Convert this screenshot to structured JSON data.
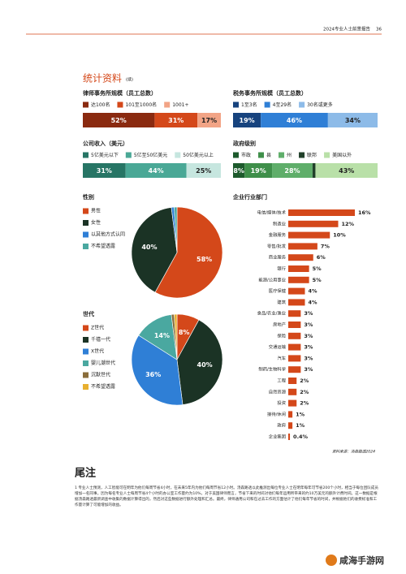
{
  "header": {
    "text": "2024专业人士前景报告",
    "page": "36"
  },
  "section": {
    "title": "统计资料",
    "note": "(续)"
  },
  "chart_data": [
    {
      "type": "stacked",
      "title": "律师事务所规模（员工总数）",
      "categories": [
        "达100名",
        "101至1000名",
        "1001+"
      ],
      "values": [
        52,
        31,
        17
      ],
      "value_labels": [
        "52%",
        "31%",
        "17%"
      ],
      "colors": [
        "#8a2a10",
        "#d4481a",
        "#f2a486"
      ]
    },
    {
      "type": "stacked",
      "title": "税务事务所规模（员工总数）",
      "categories": [
        "1至3名",
        "4至29名",
        "30名或更多"
      ],
      "values": [
        19,
        46,
        34
      ],
      "value_labels": [
        "19%",
        "46%",
        "34%"
      ],
      "colors": [
        "#17437e",
        "#2f7fd6",
        "#8dbbe8"
      ]
    },
    {
      "type": "stacked",
      "title": "公司收入（美元）",
      "categories": [
        "5亿美元以下",
        "5亿至50亿美元",
        "50亿美元以上"
      ],
      "values": [
        31,
        44,
        25
      ],
      "value_labels": [
        "31%",
        "44%",
        "25%"
      ],
      "colors": [
        "#277565",
        "#4aa896",
        "#c6e6df"
      ]
    },
    {
      "type": "stacked",
      "title": "政府级别",
      "categories": [
        "市政",
        "县",
        "州",
        "联邦",
        "美国以外"
      ],
      "values": [
        8,
        19,
        28,
        2,
        43
      ],
      "value_labels": [
        "8%",
        "19%",
        "28%",
        null,
        "43%"
      ],
      "colors": [
        "#1d5a2c",
        "#3f8f4a",
        "#5fae6a",
        "#21402a",
        "#b9e0a8"
      ]
    },
    {
      "type": "pie",
      "title": "性别",
      "categories": [
        "男性",
        "女性",
        "以其他方式认同",
        "不希望透露"
      ],
      "values": [
        58,
        40,
        1,
        1
      ],
      "value_labels": [
        "58%",
        "40%",
        null,
        null
      ],
      "colors": [
        "#d4481a",
        "#1b3325",
        "#2f7fd6",
        "#4aa8a0"
      ]
    },
    {
      "type": "pie",
      "title": "世代",
      "categories": [
        "Z世代",
        "千禧一代",
        "X世代",
        "婴儿潮世代",
        "沉默世代",
        "不希望透露"
      ],
      "values": [
        8,
        40,
        36,
        14,
        1,
        1
      ],
      "value_labels": [
        "8%",
        "40%",
        "36%",
        "14%",
        null,
        null
      ],
      "colors": [
        "#d4481a",
        "#1b3325",
        "#2f7fd6",
        "#4aa8a0",
        "#8a6d3b",
        "#e8b030"
      ]
    },
    {
      "type": "bar",
      "title": "企业行业部门",
      "color": "#d4481a",
      "categories": [
        "电信/媒体/技术",
        "制造业",
        "金融服务",
        "零售/批发",
        "商业服务",
        "银行",
        "能源/公用事业",
        "医疗保健",
        "建筑",
        "食品/农业/渔业",
        "房地产",
        "保险",
        "交通运输",
        "汽车",
        "制药/生物科学",
        "工程",
        "自然资源",
        "投资",
        "接待/休闲",
        "政府",
        "企业集团"
      ],
      "values": [
        16,
        12,
        10,
        7,
        6,
        5,
        5,
        4,
        4,
        3,
        3,
        3,
        3,
        3,
        3,
        2,
        2,
        2,
        1,
        1,
        0.4
      ],
      "value_labels": [
        "16%",
        "12%",
        "10%",
        "7%",
        "6%",
        "5%",
        "5%",
        "4%",
        "4%",
        "3%",
        "3%",
        "3%",
        "3%",
        "3%",
        "3%",
        "2%",
        "2%",
        "2%",
        "1%",
        "1%",
        "0.4%"
      ],
      "source": "资料来源：汤森路透2024"
    }
  ],
  "endnotes": {
    "title": "尾注",
    "number": "1",
    "text": "专业人士预测，人工智能可在明年为他们每周节省4小时，在未来5年内为他们每周节省12小时。汤森路透以此推测出每位专业人士在明年每年可节省200个小时，相当于每位团队成员增加一名同事。因为每名专业人士每周节省4个小时的办公室工作量约为10%，对于美国律师而言，节省下来的时间对他们每年运用所带来的约10万美元的额外计费时间。这一数据是根据汤森路透最新调查中收集的数据计算得出的，然后对这些数据进行额外处理和汇总。最终，律师通用公司和在过去工作的方面估计了他们每年节省的时间，并根据他们的收费标准和工作量计算了可能增加的收益。"
  },
  "watermark": "咸海手游网"
}
